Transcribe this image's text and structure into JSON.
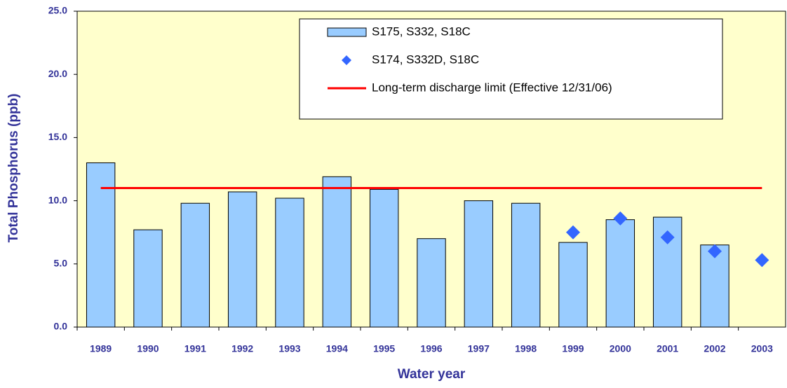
{
  "chart_data": {
    "type": "bar",
    "x_label": "Water year",
    "y_label": "Total Phosphorus (ppb)",
    "categories": [
      "1989",
      "1990",
      "1991",
      "1992",
      "1993",
      "1994",
      "1995",
      "1996",
      "1997",
      "1998",
      "1999",
      "2000",
      "2001",
      "2002",
      "2003"
    ],
    "series": [
      {
        "name": "S175, S332, S18C",
        "type": "bar",
        "color": "#99ccff",
        "values": [
          13.0,
          7.7,
          9.8,
          10.7,
          10.2,
          11.9,
          10.9,
          7.0,
          10.0,
          9.8,
          6.7,
          8.5,
          8.7,
          6.5,
          null
        ]
      },
      {
        "name": "S174, S332D, S18C",
        "type": "scatter",
        "color": "#3366ff",
        "values": [
          null,
          null,
          null,
          null,
          null,
          null,
          null,
          null,
          null,
          null,
          7.5,
          8.6,
          7.1,
          6.0,
          5.3
        ]
      },
      {
        "name": "Long-term discharge limit (Effective 12/31/06)",
        "type": "line",
        "color": "#ff0000",
        "values": [
          11.0,
          11.0,
          11.0,
          11.0,
          11.0,
          11.0,
          11.0,
          11.0,
          11.0,
          11.0,
          11.0,
          11.0,
          11.0,
          11.0,
          11.0
        ]
      }
    ],
    "ylim": [
      0,
      25
    ],
    "yticks": [
      {
        "value": 0,
        "label": "0.0"
      },
      {
        "value": 5,
        "label": "5.0"
      },
      {
        "value": 10,
        "label": "10.0"
      },
      {
        "value": 15,
        "label": "15.0"
      },
      {
        "value": 20,
        "label": "20.0"
      },
      {
        "value": 25,
        "label": "25.0"
      }
    ],
    "grid": false,
    "background": "#ffffcc",
    "legend_position": "top"
  }
}
